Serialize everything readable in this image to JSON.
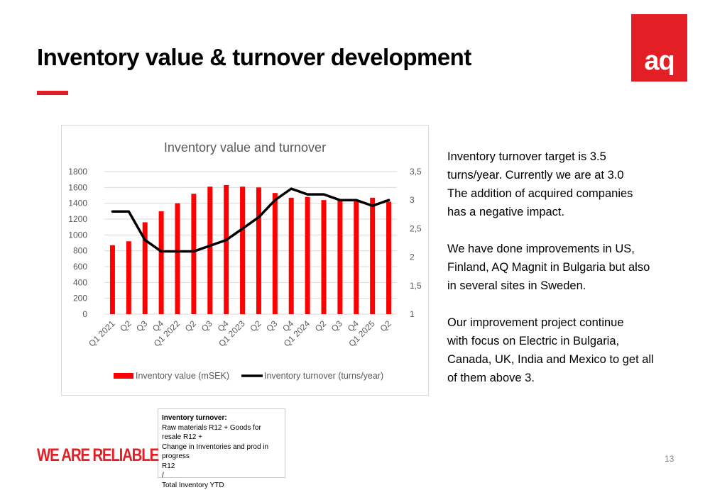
{
  "slide": {
    "title": "Inventory value & turnover development",
    "logo_text": "aq",
    "tagline": "WE ARE RELIABLE",
    "page_number": "13",
    "colors": {
      "accent": "#e31e24",
      "line": "#000000"
    }
  },
  "text_block": {
    "paragraphs": [
      {
        "lines": [
          "Inventory turnover target is 3.5",
          "turns/year. Currently we are at 3.0",
          "The addition of acquired companies",
          "has a negative impact."
        ]
      },
      {
        "lines": [
          "We have done improvements in US,",
          "Finland, AQ Magnit in Bulgaria but also",
          "in several sites in Sweden."
        ]
      },
      {
        "lines": [
          "Our improvement project continue",
          "with focus on Electric in Bulgaria,",
          "Canada, UK, India and Mexico to get all",
          "of them above 3."
        ]
      }
    ]
  },
  "formula": {
    "title": "Inventory turnover:",
    "lines": [
      "Raw materials R12 + Goods for resale R12 +",
      "Change in Inventories and  prod in progress",
      "R12",
      "/",
      "Total Inventory YTD"
    ]
  },
  "chart_data": {
    "type": "bar",
    "title": "Inventory value and turnover",
    "categories": [
      "Q1 2021",
      "Q2",
      "Q3",
      "Q4",
      "Q1 2022",
      "Q2",
      "Q3",
      "Q4",
      "Q1 2023",
      "Q2",
      "Q3",
      "Q4",
      "Q1 2024",
      "Q2",
      "Q3",
      "Q4",
      "Q1 2025",
      "Q2"
    ],
    "series": [
      {
        "name": "Inventory value (mSEK)",
        "type": "bar",
        "axis": "left",
        "color": "#ff0000",
        "values": [
          870,
          920,
          1160,
          1300,
          1400,
          1520,
          1610,
          1630,
          1610,
          1600,
          1530,
          1470,
          1480,
          1440,
          1450,
          1430,
          1470,
          1420
        ]
      },
      {
        "name": "Inventory turnover (turns/year)",
        "type": "line",
        "axis": "right",
        "color": "#000000",
        "values": [
          2.8,
          2.8,
          2.3,
          2.1,
          2.1,
          2.1,
          2.2,
          2.3,
          2.5,
          2.7,
          3.0,
          3.2,
          3.1,
          3.1,
          3.0,
          3.0,
          2.9,
          3.0
        ]
      }
    ],
    "y_left": {
      "min": 0,
      "max": 1800,
      "ticks": [
        "0",
        "200",
        "400",
        "600",
        "800",
        "1000",
        "1200",
        "1400",
        "1600",
        "1800"
      ]
    },
    "y_right": {
      "min": 1,
      "max": 3.5,
      "ticks": [
        "1",
        "1,5",
        "2",
        "2,5",
        "3",
        "3,5"
      ]
    },
    "grid": true,
    "legend_position": "bottom"
  }
}
